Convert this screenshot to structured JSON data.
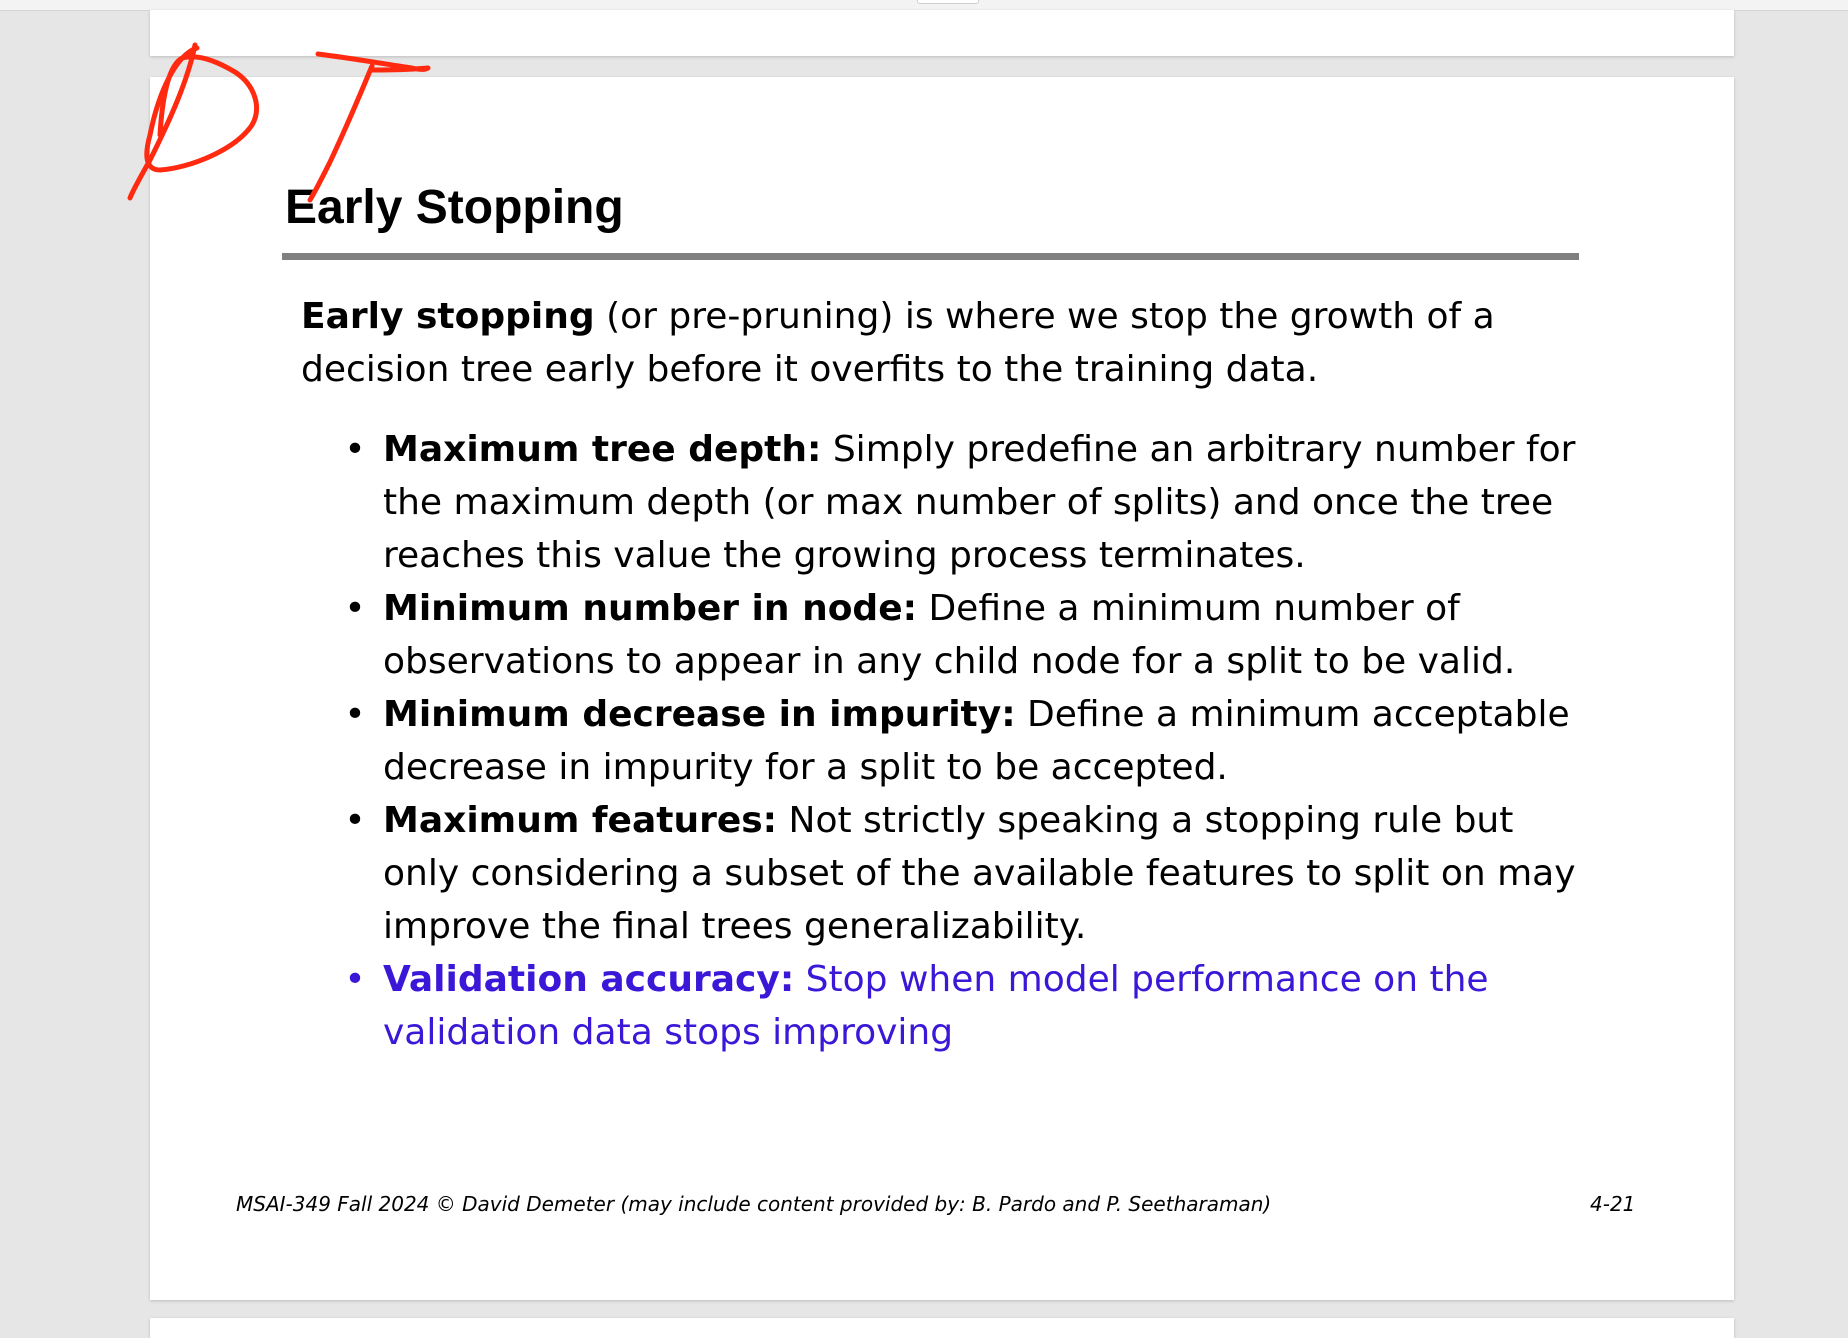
{
  "slide": {
    "title": "Early Stopping",
    "intro_term": "Early stopping",
    "intro_text": " (or pre-pruning) is where we stop the growth  of a decision tree early before it overfits to the training data.",
    "bullets": [
      {
        "term": "Maximum tree depth:",
        "text": " Simply predefine an arbitrary number for  the maximum depth (or max number of splits) and once the  tree reaches this value the growing process terminates."
      },
      {
        "term": "Minimum number in node:",
        "text": " Define a minimum number of observations to appear in any child node for a split to be valid."
      },
      {
        "term": "Minimum decrease in impurity:",
        "text": " Define a minimum  acceptable decrease in impurity for a split to be accepted."
      },
      {
        "term": "Maximum features:",
        "text": " Not strictly speaking a stopping rule but only considering a subset of the available features to split  on may improve the final trees generalizability."
      },
      {
        "term": "Validation accuracy:",
        "text": " Stop when model performance on the validation data stops improving"
      }
    ],
    "footer": "MSAI-349 Fall 2024 © David Demeter (may include content provided by: B. Pardo and P. Seetharaman)",
    "page_number": "4-21"
  },
  "annotation": {
    "handwritten_text": "DT",
    "ink_color": "#ff2a10"
  },
  "colors": {
    "accent_bullet": "#3b17d8",
    "title_rule": "#808080",
    "canvas_background": "#e6e6e6"
  }
}
